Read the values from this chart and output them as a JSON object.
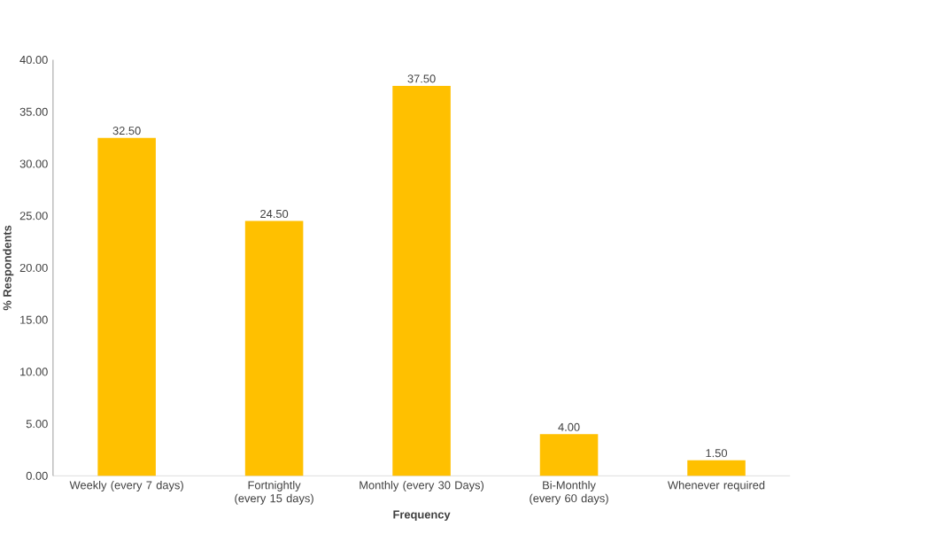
{
  "chart_data": {
    "type": "bar",
    "xlabel": "Frequency",
    "ylabel": "% Respondents",
    "categories": [
      "Weekly (every 7 days)",
      "Fortnightly (every 15 days)",
      "Monthly (every 30 Days)",
      "Bi-Monthly (every 60 days)",
      "Whenever required"
    ],
    "values": [
      32.5,
      24.5,
      37.5,
      4.0,
      1.5
    ],
    "value_labels": [
      "32.50",
      "24.50",
      "37.50",
      "4.00",
      "1.50"
    ],
    "color": "#ffc000",
    "ylim": [
      0,
      40
    ],
    "yticks": [
      {
        "value": 0,
        "label": "0.00"
      },
      {
        "value": 5,
        "label": "5.00"
      },
      {
        "value": 10,
        "label": "10.00"
      },
      {
        "value": 15,
        "label": "15.00"
      },
      {
        "value": 20,
        "label": "20.00"
      },
      {
        "value": 25,
        "label": "25.00"
      },
      {
        "value": 30,
        "label": "30.00"
      },
      {
        "value": 35,
        "label": "35.00"
      },
      {
        "value": 40,
        "label": "40.00"
      }
    ]
  }
}
